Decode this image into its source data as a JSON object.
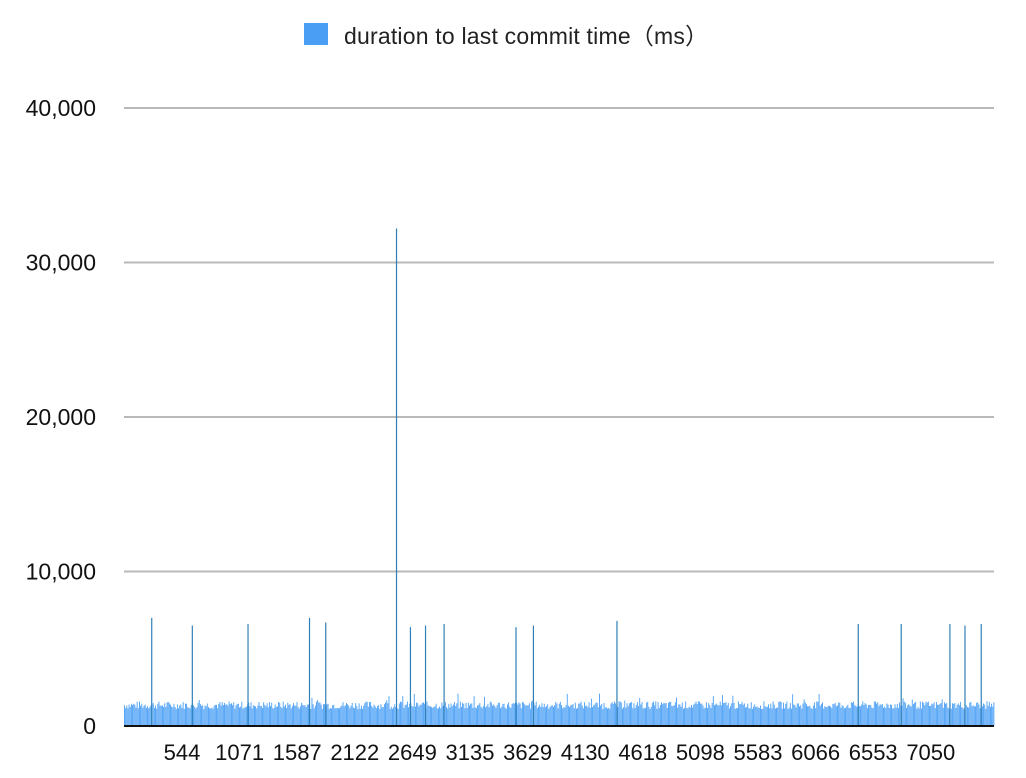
{
  "legend": {
    "label": "duration to last commit time（ms）"
  },
  "colors": {
    "bar": "#4a9ff5",
    "spike": "#2f7fb8",
    "grid": "#b9b9b9",
    "axis": "#111111"
  },
  "chart_data": {
    "type": "bar",
    "title": "",
    "xlabel": "",
    "ylabel": "",
    "ylim": [
      0,
      40000
    ],
    "y_ticks": [
      0,
      10000,
      20000,
      30000,
      40000
    ],
    "y_tick_labels": [
      "0",
      "10,000",
      "20,000",
      "30,000",
      "40,000"
    ],
    "grid": true,
    "legend_position": "top-center",
    "x_range": [
      1,
      7500
    ],
    "x_tick_labels": [
      "544",
      "1071",
      "1587",
      "2122",
      "2649",
      "3135",
      "3629",
      "4130",
      "4618",
      "5098",
      "5583",
      "6066",
      "6553",
      "7050"
    ],
    "series": [
      {
        "name": "duration to last commit time（ms）",
        "baseline": 1400,
        "baseline_range": [
          1100,
          1600
        ],
        "spikes": [
          {
            "x": 240,
            "y": 7000
          },
          {
            "x": 590,
            "y": 6500
          },
          {
            "x": 1070,
            "y": 6600
          },
          {
            "x": 1600,
            "y": 7000
          },
          {
            "x": 1740,
            "y": 6700
          },
          {
            "x": 2350,
            "y": 32200
          },
          {
            "x": 2470,
            "y": 6400
          },
          {
            "x": 2600,
            "y": 6500
          },
          {
            "x": 2760,
            "y": 6600
          },
          {
            "x": 3380,
            "y": 6400
          },
          {
            "x": 3530,
            "y": 6500
          },
          {
            "x": 4250,
            "y": 6800
          },
          {
            "x": 6330,
            "y": 6600
          },
          {
            "x": 6700,
            "y": 6600
          },
          {
            "x": 7120,
            "y": 6600
          },
          {
            "x": 7250,
            "y": 6500
          },
          {
            "x": 7390,
            "y": 6600
          }
        ]
      }
    ]
  }
}
